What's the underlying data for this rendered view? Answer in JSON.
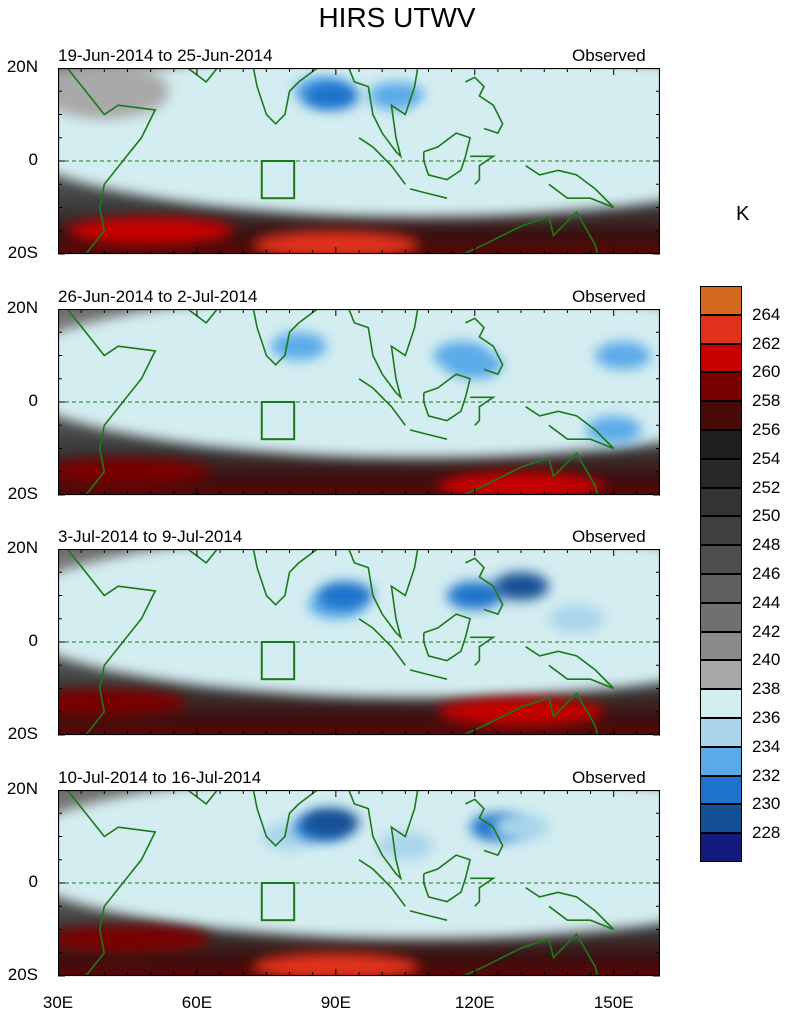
{
  "chart_data": {
    "type": "heatmap",
    "title": "HIRS UTWV",
    "unit": "K",
    "x_ticks": [
      "30E",
      "60E",
      "90E",
      "120E",
      "150E"
    ],
    "x_tick_values": [
      30,
      60,
      90,
      120,
      150
    ],
    "x_range": [
      30,
      160
    ],
    "y_ticks": [
      "20N",
      "0",
      "20S"
    ],
    "y_range": [
      -20,
      20
    ],
    "colorbar": {
      "levels": [
        264,
        262,
        260,
        258,
        256,
        254,
        252,
        250,
        248,
        246,
        244,
        242,
        240,
        238,
        236,
        234,
        232,
        230,
        228
      ],
      "colors": [
        "#d2691e",
        "#e0321a",
        "#c80000",
        "#7a0000",
        "#4a0a0a",
        "#1e1e1e",
        "#282828",
        "#333333",
        "#3f3f3f",
        "#4e4e4e",
        "#5e5e5e",
        "#707070",
        "#8a8a8a",
        "#a9a9a9",
        "#d4edf0",
        "#a9d4ea",
        "#5aaae8",
        "#1f72cc",
        "#124f94",
        "#141a80"
      ]
    },
    "panels": [
      {
        "date_range": "19-Jun-2014 to 25-Jun-2014",
        "label": "Observed",
        "features": [
          {
            "lon": 40,
            "lat": 15,
            "level": 238
          },
          {
            "lon": 76,
            "lat": 10,
            "level": 236
          },
          {
            "lon": 87,
            "lat": 15,
            "level": 232
          },
          {
            "lon": 89,
            "lat": 14,
            "level": 230
          },
          {
            "lon": 103,
            "lat": 14,
            "level": 232
          },
          {
            "lon": 120,
            "lat": 8,
            "level": 236
          },
          {
            "lon": 140,
            "lat": 8,
            "level": 236
          },
          {
            "lon": 90,
            "lat": -18,
            "level": 262
          },
          {
            "lon": 50,
            "lat": -15,
            "level": 260
          }
        ]
      },
      {
        "date_range": "26-Jun-2014 to 2-Jul-2014",
        "label": "Observed",
        "features": [
          {
            "lon": 88,
            "lat": 8,
            "level": 236
          },
          {
            "lon": 82,
            "lat": 12,
            "level": 232
          },
          {
            "lon": 120,
            "lat": 8,
            "level": 232
          },
          {
            "lon": 152,
            "lat": 10,
            "level": 232
          },
          {
            "lon": 150,
            "lat": -6,
            "level": 232
          },
          {
            "lon": 117,
            "lat": 10,
            "level": 232
          },
          {
            "lon": 130,
            "lat": -18,
            "level": 260
          },
          {
            "lon": 45,
            "lat": -15,
            "level": 258
          }
        ]
      },
      {
        "date_range": "3-Jul-2014 to 9-Jul-2014",
        "label": "Observed",
        "features": [
          {
            "lon": 75,
            "lat": 8,
            "level": 236
          },
          {
            "lon": 90,
            "lat": 8,
            "level": 232
          },
          {
            "lon": 92,
            "lat": 10,
            "level": 230
          },
          {
            "lon": 120,
            "lat": 10,
            "level": 230
          },
          {
            "lon": 130,
            "lat": 12,
            "level": 228
          },
          {
            "lon": 142,
            "lat": 5,
            "level": 234
          },
          {
            "lon": 130,
            "lat": -15,
            "level": 260
          },
          {
            "lon": 40,
            "lat": -13,
            "level": 258
          }
        ]
      },
      {
        "date_range": "10-Jul-2014 to 16-Jul-2014",
        "label": "Observed",
        "features": [
          {
            "lon": 80,
            "lat": 10,
            "level": 234
          },
          {
            "lon": 87,
            "lat": 12,
            "level": 230
          },
          {
            "lon": 89,
            "lat": 13,
            "level": 228
          },
          {
            "lon": 105,
            "lat": 8,
            "level": 234
          },
          {
            "lon": 125,
            "lat": 12,
            "level": 230
          },
          {
            "lon": 130,
            "lat": 12,
            "level": 234
          },
          {
            "lon": 90,
            "lat": -18,
            "level": 262
          },
          {
            "lon": 45,
            "lat": -12,
            "level": 258
          }
        ]
      }
    ]
  }
}
